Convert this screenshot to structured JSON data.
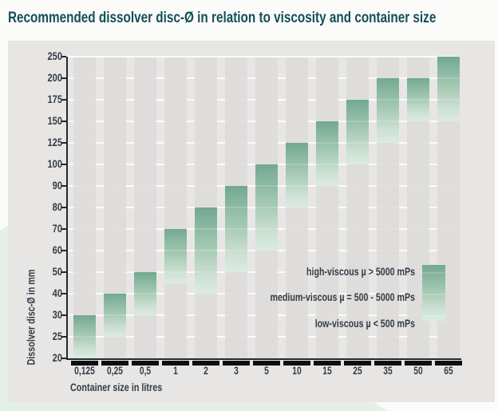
{
  "title": "Recommended dissolver disc-Ø in relation to viscosity and container size",
  "chart_data": {
    "type": "bar",
    "title": "Recommended dissolver disc-Ø in relation to viscosity and container size",
    "xlabel": "Container size in litres",
    "ylabel": "Dissolver disc-Ø in mm",
    "y_ticks": [
      20,
      25,
      30,
      40,
      50,
      60,
      70,
      80,
      90,
      100,
      125,
      150,
      175,
      200,
      250
    ],
    "y_scale": "ordinal-equal-spacing",
    "categories": [
      "0,125",
      "0,25",
      "0,5",
      "1",
      "2",
      "3",
      "5",
      "10",
      "15",
      "25",
      "35",
      "50",
      "65"
    ],
    "bars": [
      {
        "container_litres": "0,125",
        "disc_min": 20,
        "disc_max": 30
      },
      {
        "container_litres": "0,25",
        "disc_min": 25,
        "disc_max": 40
      },
      {
        "container_litres": "0,5",
        "disc_min": 30,
        "disc_max": 50
      },
      {
        "container_litres": "1",
        "disc_min": 45,
        "disc_max": 70
      },
      {
        "container_litres": "2",
        "disc_min": 40,
        "disc_max": 80
      },
      {
        "container_litres": "3",
        "disc_min": 50,
        "disc_max": 90
      },
      {
        "container_litres": "5",
        "disc_min": 60,
        "disc_max": 100
      },
      {
        "container_litres": "10",
        "disc_min": 80,
        "disc_max": 125
      },
      {
        "container_litres": "15",
        "disc_min": 90,
        "disc_max": 150
      },
      {
        "container_litres": "25",
        "disc_min": 100,
        "disc_max": 175
      },
      {
        "container_litres": "35",
        "disc_min": 125,
        "disc_max": 200
      },
      {
        "container_litres": "50",
        "disc_min": 150,
        "disc_max": 200
      },
      {
        "container_litres": "65",
        "disc_min": 150,
        "disc_max": 250
      }
    ],
    "legend": {
      "items": [
        "high-viscous µ > 5000 mPs",
        "medium-viscous µ = 500 - 5000 mPs",
        "low-viscous µ < 500 mPs"
      ],
      "swatch": "vertical gradient, dark green top to pale green bottom"
    },
    "grid": "white horizontal gridlines at each y tick, grey column stripes",
    "colors": {
      "bar_gradient_top": "#72a890",
      "bar_gradient_bottom": "#dcebe2",
      "title_text": "#144f59",
      "label_text": "#343c46",
      "panel_bg": "#e7e6e4",
      "column_stripe": "#dedddb",
      "accent_shape": "#e4efe8",
      "axis": "#23282e"
    }
  }
}
